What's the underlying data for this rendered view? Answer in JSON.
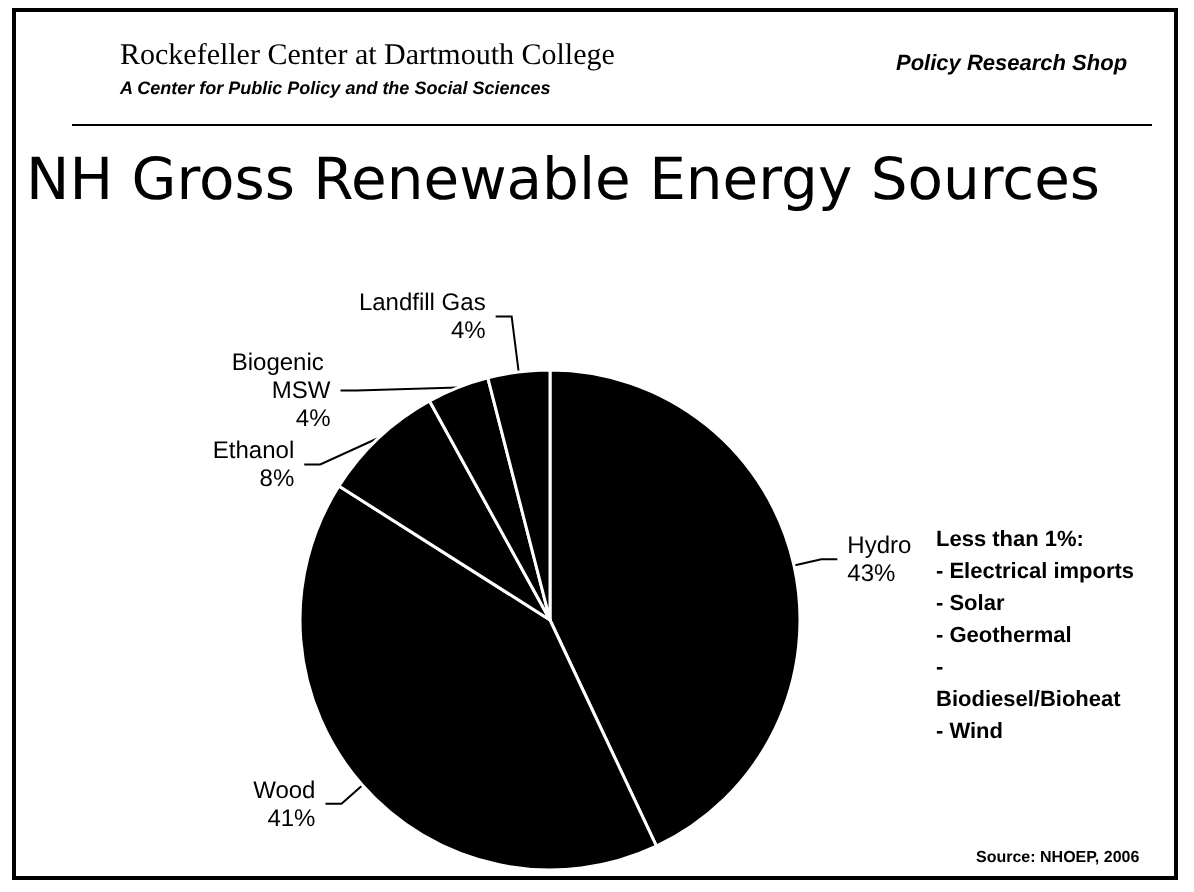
{
  "chart_data": {
    "type": "pie",
    "title": "NH Gross Renewable Energy Sources",
    "categories": [
      "Hydro",
      "Wood",
      "Ethanol",
      "Biogenic MSW",
      "Landfill Gas"
    ],
    "values": [
      43,
      41,
      8,
      4,
      4
    ],
    "value_labels": [
      "43%",
      "41%",
      "8%",
      "4%",
      "4%"
    ],
    "colors": [
      "#000000",
      "#000000",
      "#000000",
      "#000000",
      "#000000"
    ],
    "legend": false,
    "annotations": [
      "Rockefeller Center at Dartmouth College",
      "A Center for Public Policy and the Social Sciences",
      "Policy Research Shop",
      "Less than 1%:\n- Electrical imports\n- Solar\n- Geothermal\n-\nBiodiesel/Bioheat\n- Wind",
      "Source: NHOEP, 2006"
    ]
  }
}
